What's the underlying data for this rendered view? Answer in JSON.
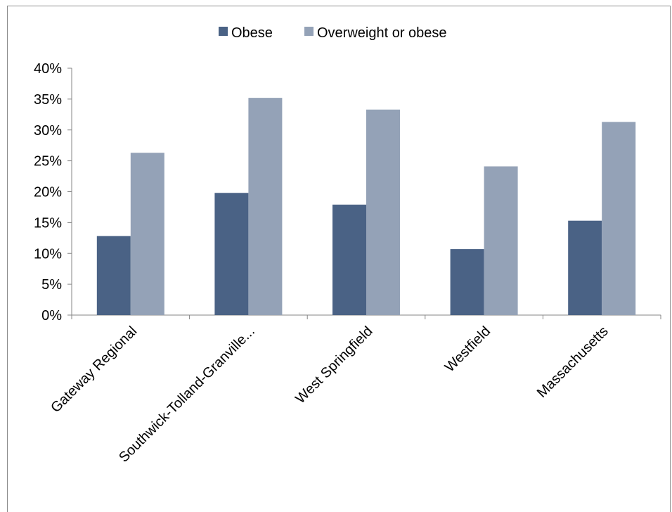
{
  "chart_data": {
    "type": "bar",
    "categories": [
      "Gateway Regional",
      "Southwick-Tolland-Granville...",
      "West Springfield",
      "Westfield",
      "Massachusetts"
    ],
    "series": [
      {
        "name": "Obese",
        "color": "#4a6285",
        "values": [
          12.8,
          19.8,
          17.9,
          10.7,
          15.3
        ]
      },
      {
        "name": "Overweight or obese",
        "color": "#94a2b7",
        "values": [
          26.3,
          35.2,
          33.3,
          24.1,
          31.3
        ]
      }
    ],
    "y_ticks": [
      "0%",
      "5%",
      "10%",
      "15%",
      "20%",
      "25%",
      "30%",
      "35%",
      "40%"
    ],
    "ylim": [
      0,
      40
    ],
    "grid": false,
    "legend_position": "top-center"
  }
}
